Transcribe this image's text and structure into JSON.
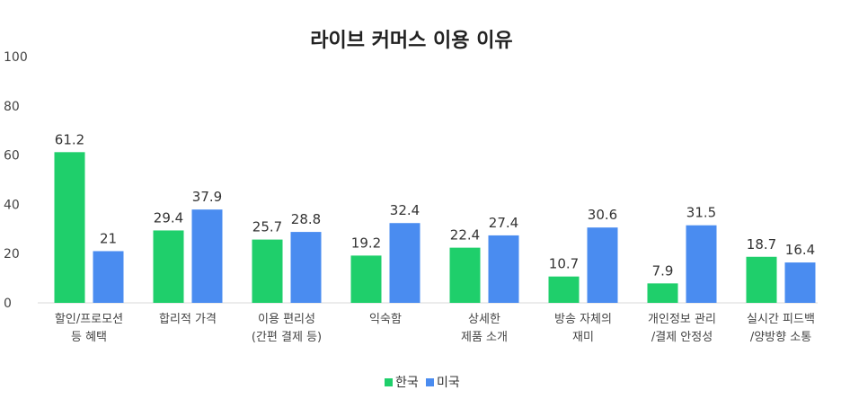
{
  "chart_data": {
    "type": "bar",
    "title": "라이브 커머스 이용 이유",
    "xlabel": "",
    "ylabel": "",
    "ylim": [
      0,
      100
    ],
    "yticks": [
      0,
      20,
      40,
      60,
      80,
      100
    ],
    "grid": false,
    "legend_position": "bottom",
    "categories": [
      [
        "할인/프로모션",
        "등 혜택"
      ],
      [
        "합리적 가격"
      ],
      [
        "이용 편리성",
        "(간편 결제 등)"
      ],
      [
        "익숙함"
      ],
      [
        "상세한",
        "제품 소개"
      ],
      [
        "방송 자체의",
        "재미"
      ],
      [
        "개인정보 관리",
        "/결제 안정성"
      ],
      [
        "실시간 피드백",
        "/양방향 소통"
      ]
    ],
    "series": [
      {
        "name": "한국",
        "color": "#1fcf6b",
        "values": [
          61.2,
          29.4,
          25.7,
          19.2,
          22.4,
          10.7,
          7.9,
          18.7
        ],
        "labels": [
          "61.2",
          "29.4",
          "25.7",
          "19.2",
          "22.4",
          "10.7",
          "7.9",
          "18.7"
        ]
      },
      {
        "name": "미국",
        "color": "#4a8cf0",
        "values": [
          21,
          37.9,
          28.8,
          32.4,
          27.4,
          30.6,
          31.5,
          16.4
        ],
        "labels": [
          "21",
          "37.9",
          "28.8",
          "32.4",
          "27.4",
          "30.6",
          "31.5",
          "16.4"
        ]
      }
    ]
  }
}
